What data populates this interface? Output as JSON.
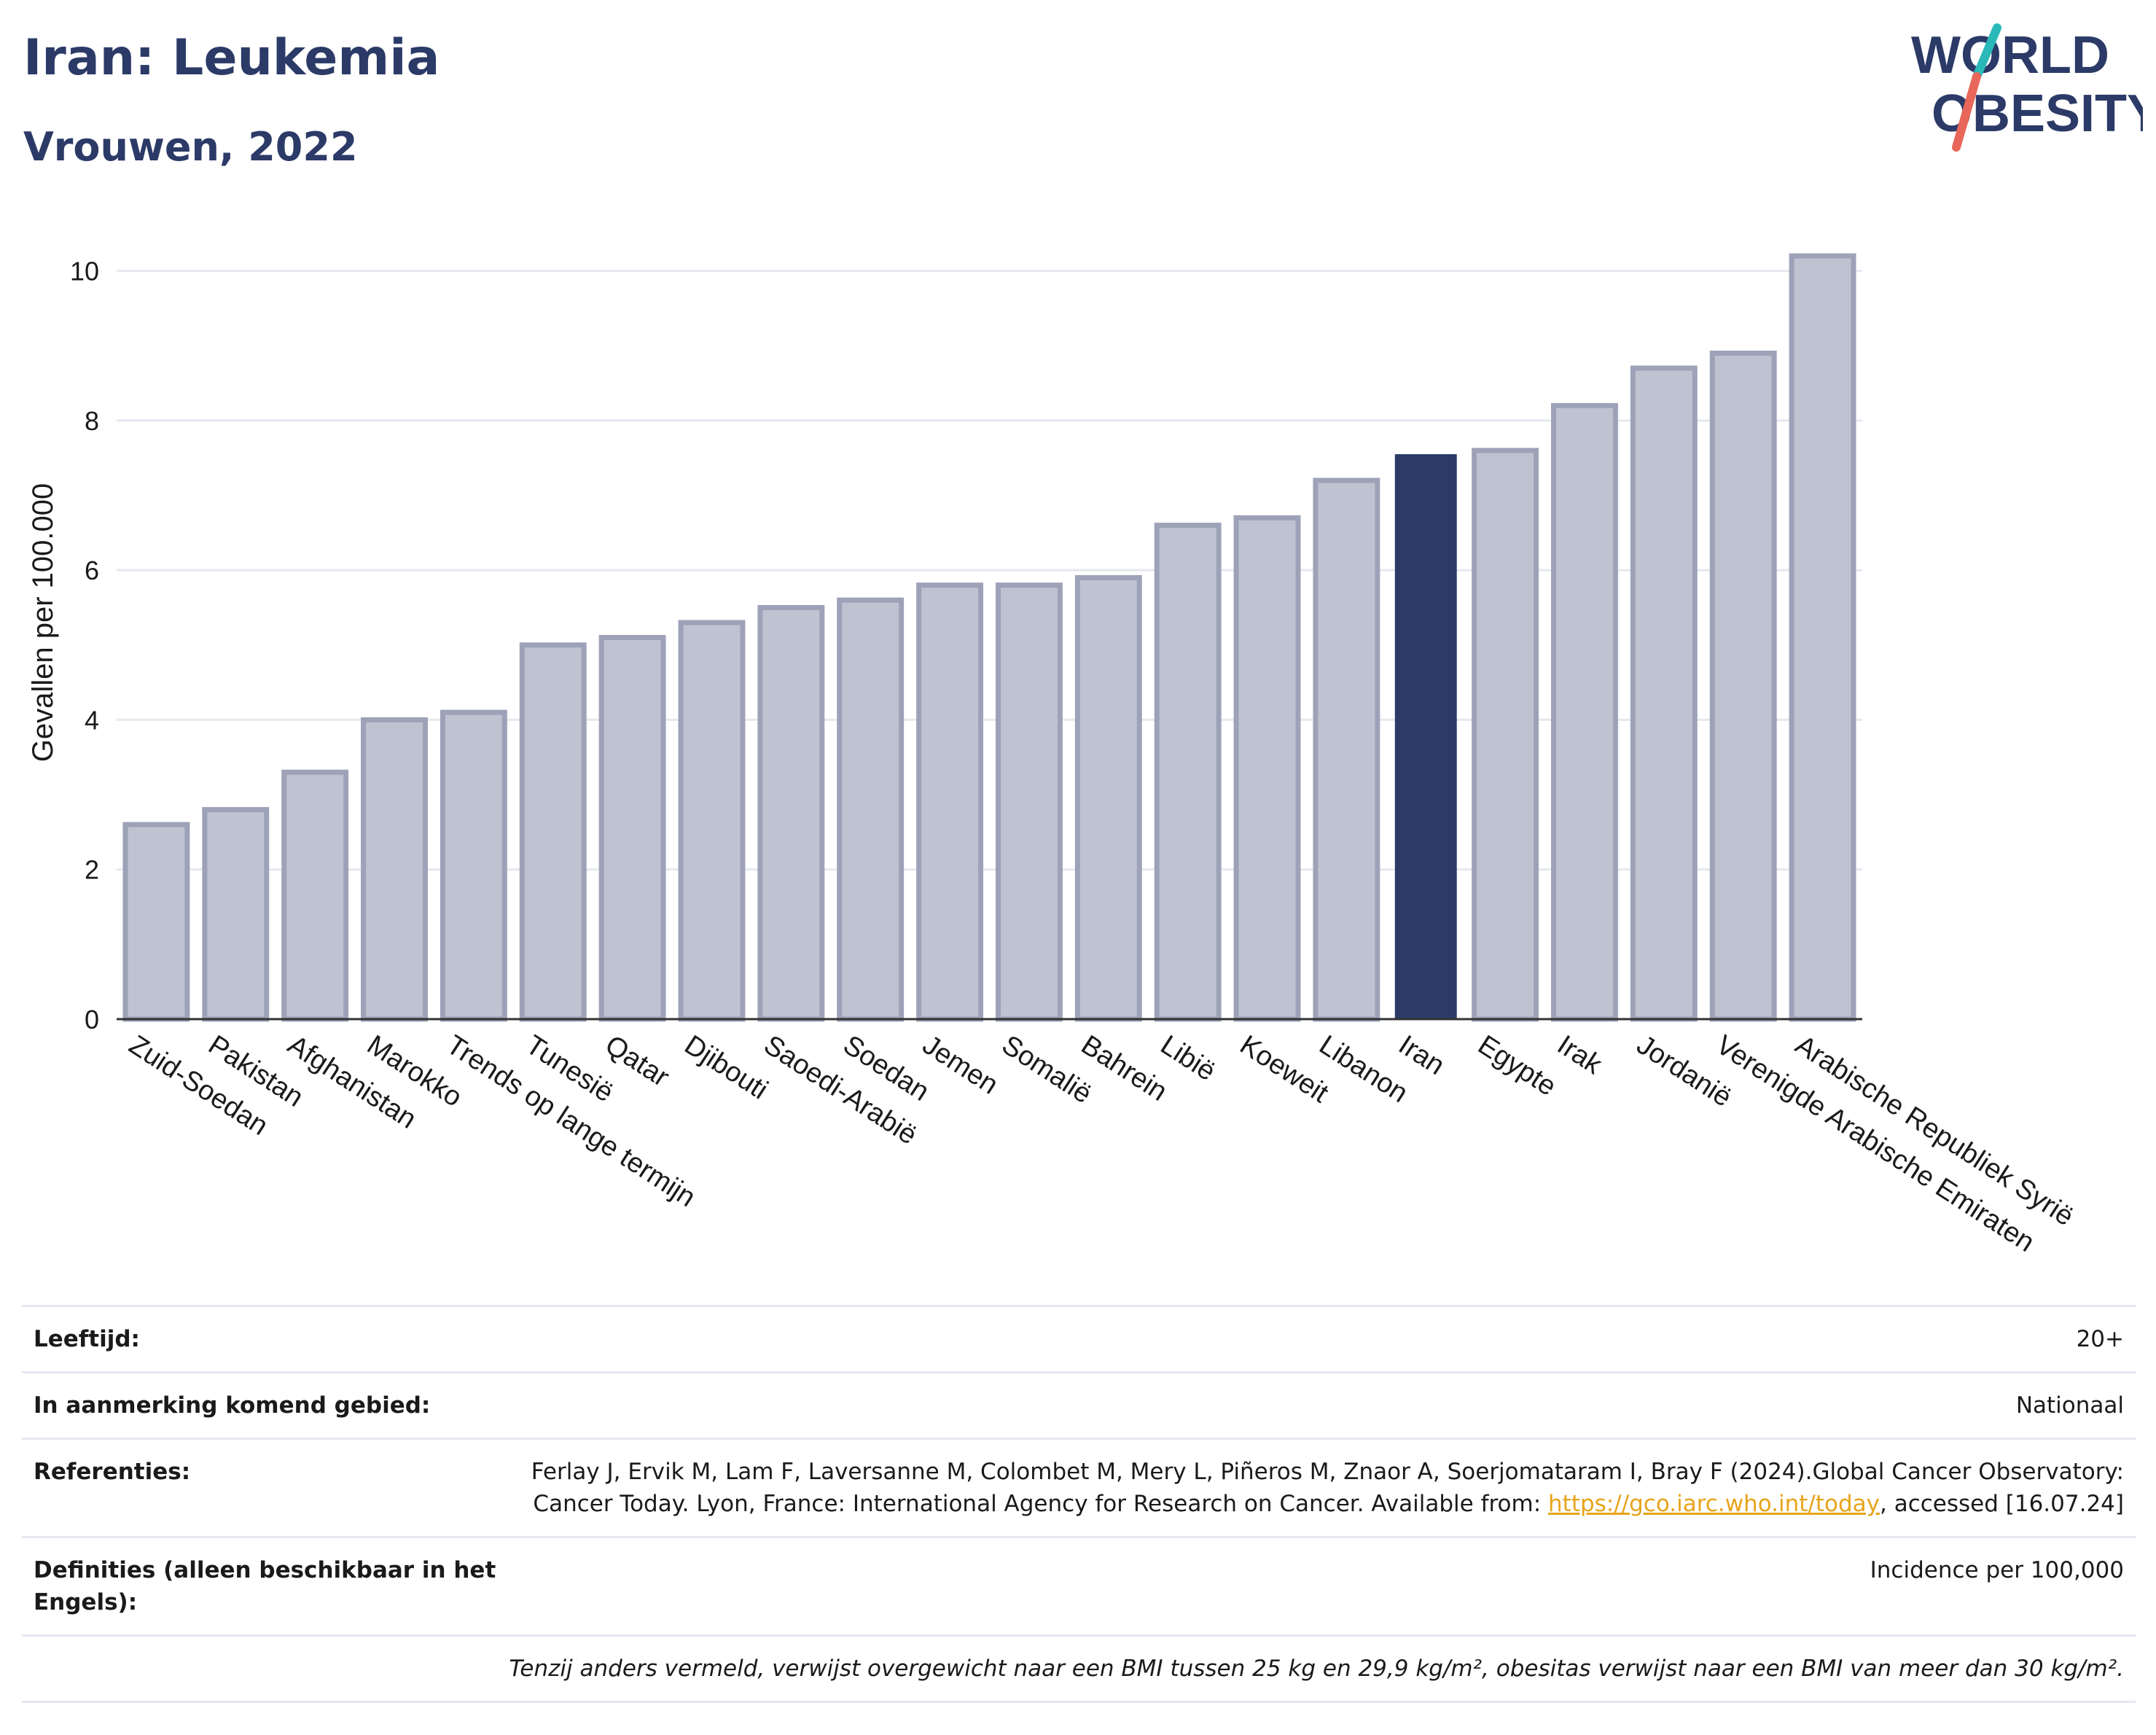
{
  "header": {
    "title": "Iran: Leukemia",
    "subtitle": "Vrouwen, 2022",
    "logo_line1": "WORLD",
    "logo_line2": "OBESITY"
  },
  "colors": {
    "title": "#2b3a67",
    "bar_default": "#bfc2d0",
    "bar_default_stroke": "#9da2b8",
    "bar_highlight": "#2b3a67",
    "grid": "#e6e8f0",
    "logo_teal": "#2ab8b8",
    "logo_red": "#e8675a"
  },
  "chart_data": {
    "type": "bar",
    "ylabel": "Gevallen per 100.000",
    "xlabel": "",
    "ylim": [
      0,
      10.6
    ],
    "yticks": [
      0,
      2,
      4,
      6,
      8,
      10
    ],
    "grid": true,
    "highlight": "Iran",
    "categories": [
      "Zuid-Soedan",
      "Pakistan",
      "Afghanistan",
      "Marokko",
      "Trends op lange termijn",
      "Tunesië",
      "Qatar",
      "Djibouti",
      "Saoedi-Arabië",
      "Soedan",
      "Jemen",
      "Somalië",
      "Bahrein",
      "Libië",
      "Koeweit",
      "Libanon",
      "Iran",
      "Egypte",
      "Irak",
      "Jordanië",
      "Verenigde Arabische Emiraten",
      "Arabische Republiek Syrië"
    ],
    "values": [
      2.6,
      2.8,
      3.3,
      4.0,
      4.1,
      5.0,
      5.1,
      5.3,
      5.5,
      5.6,
      5.8,
      5.8,
      5.9,
      6.6,
      6.7,
      7.2,
      7.55,
      7.6,
      8.2,
      8.7,
      8.9,
      10.2
    ]
  },
  "meta": {
    "age_label": "Leeftijd:",
    "age_value": "20+",
    "area_label": "In aanmerking komend gebied:",
    "area_value": "Nationaal",
    "ref_label": "Referenties:",
    "ref_text_before": "Ferlay J, Ervik M, Lam F, Laversanne M, Colombet M, Mery L, Piñeros M, Znaor A, Soerjomataram I, Bray F (2024).Global Cancer Observatory: Cancer Today. Lyon, France: International Agency for Research on Cancer. Available from: ",
    "ref_link": "https://gco.iarc.who.int/today",
    "ref_text_after": ", accessed [16.07.24]",
    "def_label": "Definities (alleen beschikbaar in het Engels):",
    "def_value": "Incidence per 100,000",
    "footnote": "Tenzij anders vermeld, verwijst overgewicht naar een BMI tussen 25 kg en 29,9 kg/m², obesitas verwijst naar een BMI van meer dan 30 kg/m²."
  }
}
